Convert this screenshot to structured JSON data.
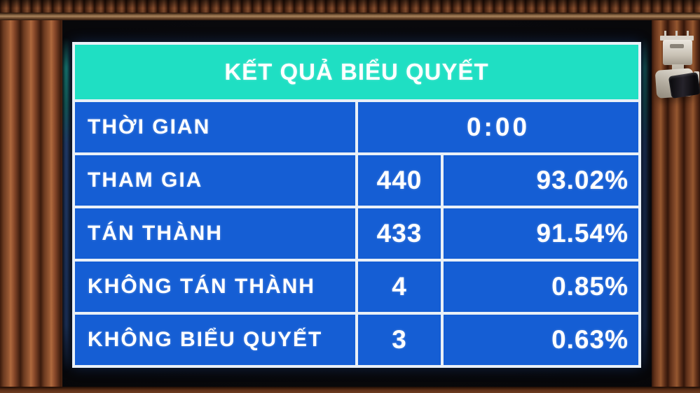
{
  "board": {
    "title": "KẾT QUẢ BIỂU QUYẾT",
    "rows": [
      {
        "label": "THỜI GIAN",
        "value": "0:00"
      },
      {
        "label": "THAM GIA",
        "count": "440",
        "percent": "93.02%"
      },
      {
        "label": "TÁN THÀNH",
        "count": "433",
        "percent": "91.54%"
      },
      {
        "label": "KHÔNG TÁN THÀNH",
        "count": "4",
        "percent": "0.85%"
      },
      {
        "label": "KHÔNG BIỂU QUYẾT",
        "count": "3",
        "percent": "0.63%"
      }
    ],
    "colors": {
      "header_bg": "#1fdfc3",
      "row_bg": "#155ed4",
      "grid_line": "#e9f0f7",
      "text": "#ffffff",
      "wood": "#7a3f24",
      "screen_bezel": "#08080a"
    }
  }
}
